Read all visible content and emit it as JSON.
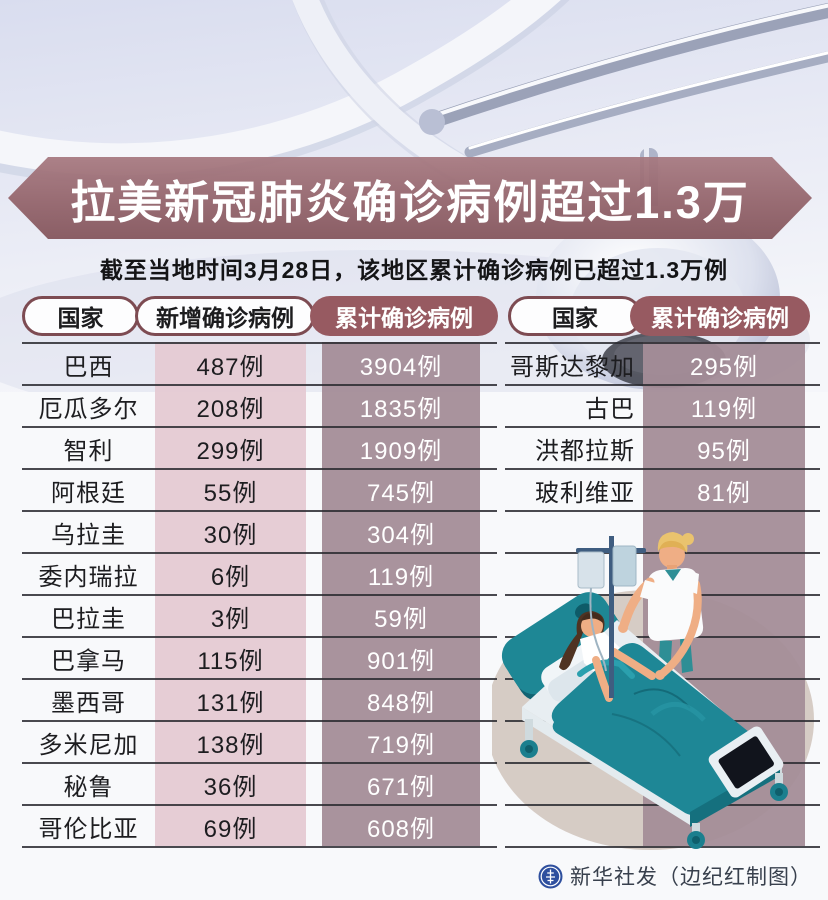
{
  "banner": {
    "title": "拉美新冠肺炎确诊病例超过1.3万"
  },
  "subtitle": "截至当地时间3月28日，该地区累计确诊病例已超过1.3万例",
  "footer": {
    "credit": "新华社发（边纪红制图）"
  },
  "colors": {
    "banner_maroon": "#96646b",
    "pill_maroon": "#975a61",
    "pill_border": "#7d4b52",
    "band_pink": "#e4cad2",
    "band_mauve": "#a48d98",
    "separator": "#2a2a30",
    "bed_teal": "#1e8796",
    "logo_blue": "#2e4f9e"
  },
  "chart_data": [
    {
      "type": "table",
      "title": "拉美新冠肺炎确诊病例超过1.3万",
      "columns": [
        "国家",
        "新增确诊病例",
        "累计确诊病例"
      ],
      "rows": [
        [
          "巴西",
          "487例",
          "3904例"
        ],
        [
          "厄瓜多尔",
          "208例",
          "1835例"
        ],
        [
          "智利",
          "299例",
          "1909例"
        ],
        [
          "阿根廷",
          "55例",
          "745例"
        ],
        [
          "乌拉圭",
          "30例",
          "304例"
        ],
        [
          "委内瑞拉",
          "6例",
          "119例"
        ],
        [
          "巴拉圭",
          "3例",
          "59例"
        ],
        [
          "巴拿马",
          "115例",
          "901例"
        ],
        [
          "墨西哥",
          "131例",
          "848例"
        ],
        [
          "多米尼加",
          "138例",
          "719例"
        ],
        [
          "秘鲁",
          "36例",
          "671例"
        ],
        [
          "哥伦比亚",
          "69例",
          "608例"
        ]
      ]
    },
    {
      "type": "table",
      "columns": [
        "国家",
        "累计确诊病例"
      ],
      "rows": [
        [
          "哥斯达黎加",
          "295例"
        ],
        [
          "古巴",
          "119例"
        ],
        [
          "洪都拉斯",
          "95例"
        ],
        [
          "玻利维亚",
          "81例"
        ]
      ]
    }
  ]
}
